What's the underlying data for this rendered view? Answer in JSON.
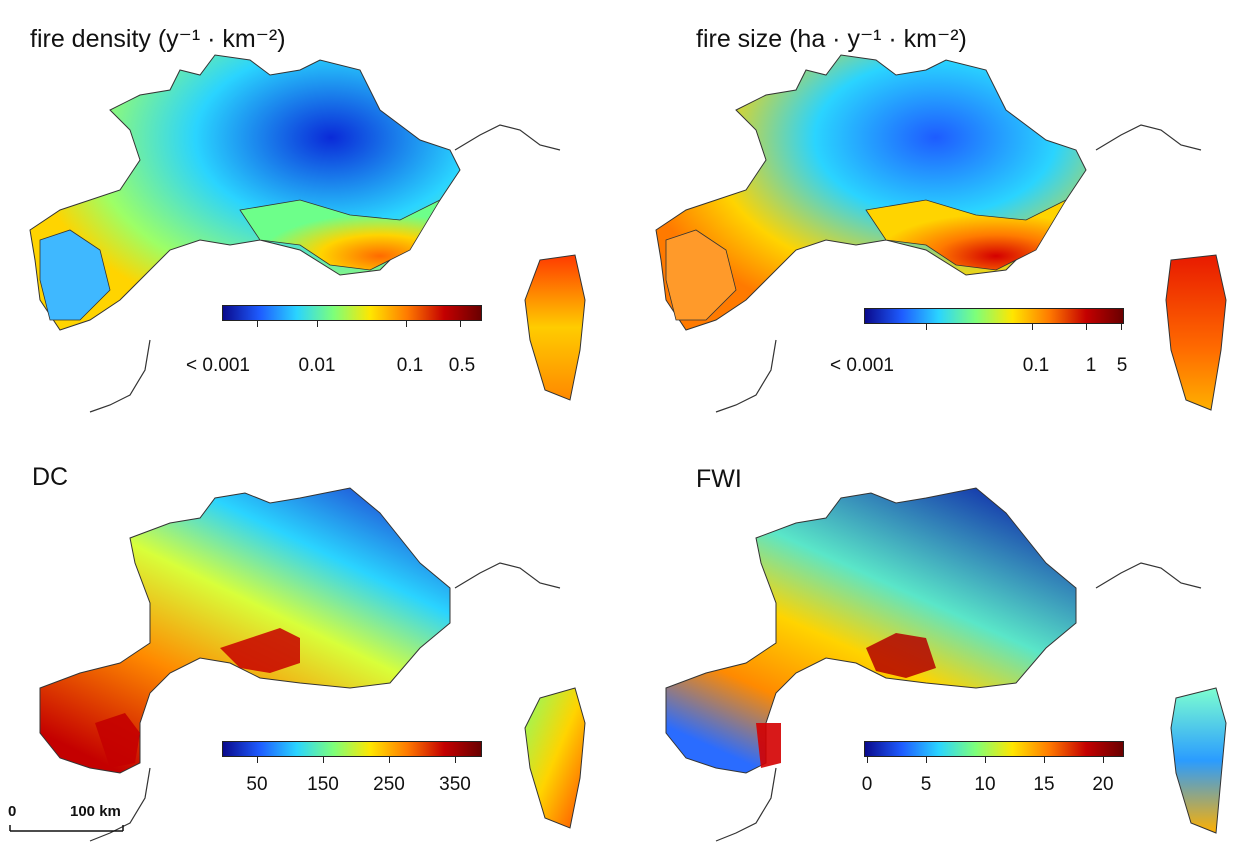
{
  "panels": [
    {
      "title_main": "fire density",
      "title_unit": "(y⁻¹ · km⁻²)",
      "colorbar_labels": [
        "< 0.001",
        "0.01",
        "0.1",
        "0.5"
      ],
      "colormap": [
        "#0a0a8c",
        "#1e5cff",
        "#2ad4ff",
        "#7dff7a",
        "#ffe600",
        "#ff7a00",
        "#c40000",
        "#6a0000"
      ]
    },
    {
      "title_main": "fire size",
      "title_unit": "(ha · y⁻¹ · km⁻²)",
      "colorbar_labels": [
        "< 0.001",
        "0.1",
        "1",
        "5"
      ],
      "colormap": [
        "#0a0a8c",
        "#1e5cff",
        "#2ad4ff",
        "#7dff7a",
        "#ffe600",
        "#ff7a00",
        "#c40000",
        "#6a0000"
      ]
    },
    {
      "title_main": "DC",
      "title_unit": "",
      "colorbar_labels": [
        "50",
        "150",
        "250",
        "350"
      ],
      "colormap": [
        "#0a0a8c",
        "#1e5cff",
        "#2ad4ff",
        "#7dff7a",
        "#ffe600",
        "#ff7a00",
        "#c40000",
        "#6a0000"
      ]
    },
    {
      "title_main": "FWI",
      "title_unit": "",
      "colorbar_labels": [
        "0",
        "5",
        "10",
        "15",
        "20"
      ],
      "colormap": [
        "#0a0a8c",
        "#1e5cff",
        "#2ad4ff",
        "#7dff7a",
        "#ffe600",
        "#ff7a00",
        "#c40000",
        "#6a0000"
      ]
    }
  ],
  "scalebar": {
    "start_label": "0",
    "end_label": "100 km"
  }
}
